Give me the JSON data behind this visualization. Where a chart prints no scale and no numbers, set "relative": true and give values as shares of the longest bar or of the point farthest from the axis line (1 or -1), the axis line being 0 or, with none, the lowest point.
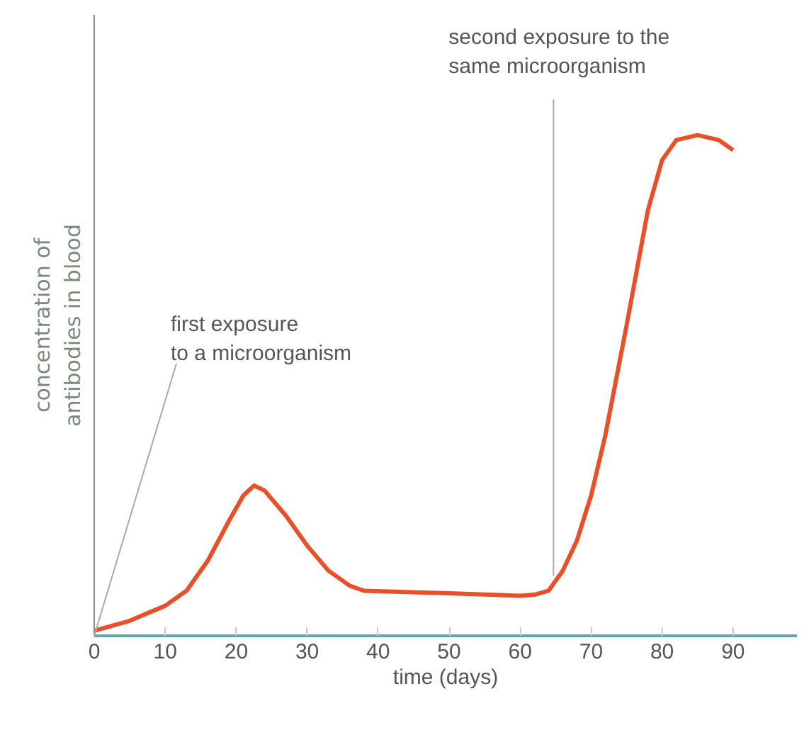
{
  "chart_data": {
    "type": "line",
    "xlabel": "time (days)",
    "ylabel": "concentration of\nantibodies in blood",
    "relative": true,
    "tick_labels": "x",
    "grid": false,
    "marker": "none",
    "line_style": "solid",
    "xlim": [
      0,
      99
    ],
    "xticks": [
      0,
      10,
      20,
      30,
      40,
      50,
      60,
      70,
      80,
      90
    ],
    "x": [
      0,
      5,
      10,
      13,
      16,
      19,
      21,
      22.5,
      24,
      27,
      30,
      33,
      36,
      38,
      50,
      60,
      62,
      64,
      66,
      68,
      70,
      72,
      75,
      78,
      80,
      82,
      85,
      88,
      90
    ],
    "series": [
      {
        "color": "#e8502a",
        "values": [
          0.01,
          0.03,
          0.06,
          0.09,
          0.15,
          0.23,
          0.28,
          0.3,
          0.29,
          0.24,
          0.18,
          0.13,
          0.1,
          0.09,
          0.085,
          0.08,
          0.082,
          0.09,
          0.13,
          0.19,
          0.28,
          0.4,
          0.62,
          0.85,
          0.95,
          0.99,
          1.0,
          0.99,
          0.97
        ]
      }
    ],
    "annotations": [
      {
        "text": "first exposure\nto a microorganism",
        "x": 0,
        "y": 0
      },
      {
        "text": "second exposure to the\nsame microorganism",
        "x": 64.7,
        "y": 0.12
      }
    ]
  }
}
